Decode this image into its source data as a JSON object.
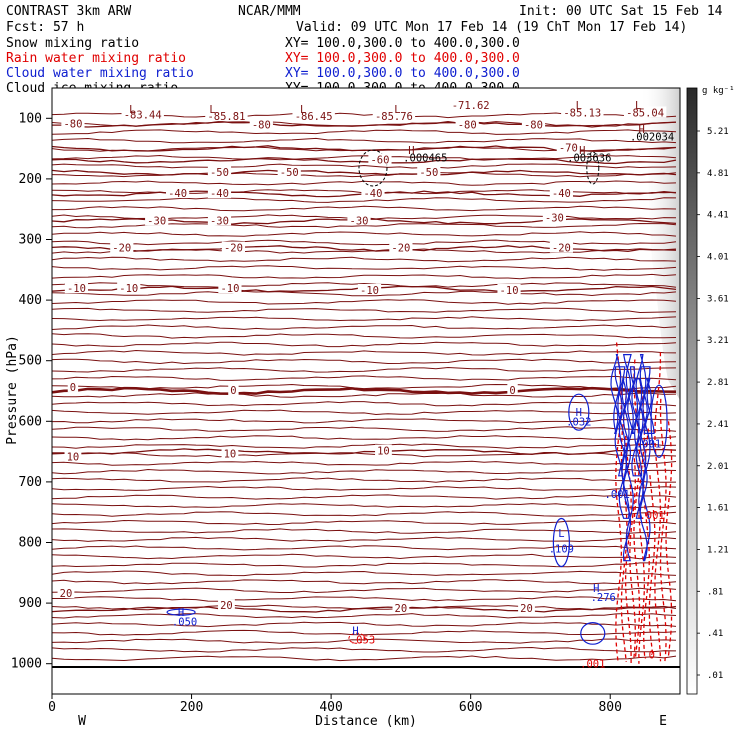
{
  "header": {
    "model": "CONTRAST  3km ARW",
    "fcst": "Fcst:   57 h",
    "org": "NCAR/MMM",
    "init": "Init: 00 UTC Sat 15 Feb 14",
    "valid": "Valid: 09 UTC Mon 17 Feb 14 (19 ChT Mon 17 Feb 14)"
  },
  "legend": [
    {
      "name": "Snow mixing ratio",
      "xy": "XY= 100.0,300.0 to 400.0,300.0",
      "color": "#000000"
    },
    {
      "name": "Rain water mixing ratio",
      "xy": "XY= 100.0,300.0 to 400.0,300.0",
      "color": "#e00000"
    },
    {
      "name": "Cloud water mixing ratio",
      "xy": "XY= 100.0,300.0 to 400.0,300.0",
      "color": "#1020d0"
    },
    {
      "name": "Cloud ice mixing ratio",
      "xy": "XY= 100.0,300.0 to 400.0,300.0",
      "color": "#000000"
    }
  ],
  "colors": {
    "temp": "#7a1010",
    "rain": "#e00000",
    "cloud": "#1020d0"
  },
  "chart_data": {
    "type": "contour",
    "xlabel": "Distance (km)",
    "ylabel": "Pressure (hPa)",
    "xlim": [
      0,
      900
    ],
    "ylim": [
      1050,
      50
    ],
    "x_ticks": [
      "0",
      "200",
      "400",
      "600",
      "800"
    ],
    "y_ticks": [
      "100",
      "200",
      "300",
      "400",
      "500",
      "600",
      "700",
      "800",
      "900",
      "1000"
    ],
    "x_ends": [
      "W",
      "E"
    ],
    "colorbar": {
      "unit": "g kg⁻¹",
      "labels": [
        "5.21",
        "4.81",
        "4.41",
        "4.01",
        "3.61",
        "3.21",
        "2.81",
        "2.41",
        "2.01",
        "1.61",
        "1.21",
        ".81",
        ".41",
        ".01"
      ]
    },
    "temperature_levels": [
      {
        "label": "-80",
        "p": 110
      },
      {
        "label": "-70",
        "p": 150
      },
      {
        "label": "-60",
        "p": 170
      },
      {
        "label": "-50",
        "p": 190
      },
      {
        "label": "-40",
        "p": 225
      },
      {
        "label": "-30",
        "p": 270
      },
      {
        "label": "-20",
        "p": 315
      },
      {
        "label": "-10",
        "p": 382
      },
      {
        "label": "0",
        "p": 550
      },
      {
        "label": "10",
        "p": 650
      },
      {
        "label": "20",
        "p": 910
      }
    ],
    "temperature_labels": [
      {
        "text": "-71.62",
        "x": 600,
        "p": 80
      },
      {
        "text": "-83.44",
        "x": 130,
        "p": 95
      },
      {
        "text": "-85.81",
        "x": 250,
        "p": 98
      },
      {
        "text": "-86.45",
        "x": 375,
        "p": 98
      },
      {
        "text": "-85.76",
        "x": 490,
        "p": 98
      },
      {
        "text": "-85.13",
        "x": 760,
        "p": 92
      },
      {
        "text": "-85.04",
        "x": 850,
        "p": 92
      },
      {
        "text": "-80",
        "x": 30,
        "p": 110
      },
      {
        "text": "-80",
        "x": 300,
        "p": 112
      },
      {
        "text": "-80",
        "x": 595,
        "p": 112
      },
      {
        "text": "-80",
        "x": 690,
        "p": 112
      },
      {
        "text": "-70",
        "x": 740,
        "p": 150
      },
      {
        "text": "-60",
        "x": 470,
        "p": 170
      },
      {
        "text": "-50",
        "x": 240,
        "p": 190
      },
      {
        "text": "-50",
        "x": 340,
        "p": 190
      },
      {
        "text": "-50",
        "x": 540,
        "p": 190
      },
      {
        "text": "-40",
        "x": 180,
        "p": 225
      },
      {
        "text": "-40",
        "x": 240,
        "p": 225
      },
      {
        "text": "-40",
        "x": 460,
        "p": 225
      },
      {
        "text": "-40",
        "x": 730,
        "p": 225
      },
      {
        "text": "-30",
        "x": 150,
        "p": 270
      },
      {
        "text": "-30",
        "x": 240,
        "p": 270
      },
      {
        "text": "-30",
        "x": 440,
        "p": 270
      },
      {
        "text": "-30",
        "x": 720,
        "p": 265
      },
      {
        "text": "-20",
        "x": 100,
        "p": 315
      },
      {
        "text": "-20",
        "x": 260,
        "p": 315
      },
      {
        "text": "-20",
        "x": 500,
        "p": 315
      },
      {
        "text": "-20",
        "x": 730,
        "p": 315
      },
      {
        "text": "-10",
        "x": 35,
        "p": 382
      },
      {
        "text": "-10",
        "x": 110,
        "p": 382
      },
      {
        "text": "-10",
        "x": 255,
        "p": 382
      },
      {
        "text": "-10",
        "x": 455,
        "p": 385
      },
      {
        "text": "-10",
        "x": 655,
        "p": 385
      },
      {
        "text": "0",
        "x": 30,
        "p": 545
      },
      {
        "text": "0",
        "x": 260,
        "p": 550
      },
      {
        "text": "0",
        "x": 660,
        "p": 550
      },
      {
        "text": "10",
        "x": 30,
        "p": 660
      },
      {
        "text": "10",
        "x": 255,
        "p": 655
      },
      {
        "text": "10",
        "x": 475,
        "p": 650
      },
      {
        "text": "20",
        "x": 20,
        "p": 885
      },
      {
        "text": "20",
        "x": 250,
        "p": 905
      },
      {
        "text": "20",
        "x": 500,
        "p": 910
      },
      {
        "text": "20",
        "x": 680,
        "p": 910
      }
    ],
    "lh_markers": [
      {
        "text": "L",
        "x": 115,
        "p": 85
      },
      {
        "text": "L",
        "x": 230,
        "p": 85
      },
      {
        "text": "L",
        "x": 360,
        "p": 85
      },
      {
        "text": "L",
        "x": 495,
        "p": 85
      },
      {
        "text": "L",
        "x": 755,
        "p": 78
      },
      {
        "text": "L",
        "x": 840,
        "p": 78
      },
      {
        "text": "H",
        "x": 845,
        "p": 118
      },
      {
        "text": "H",
        "x": 515,
        "p": 152
      },
      {
        "text": "H",
        "x": 760,
        "p": 152
      },
      {
        "text": "H",
        "x": 755,
        "p": 585
      },
      {
        "text": "L",
        "x": 730,
        "p": 784
      },
      {
        "text": "H",
        "x": 780,
        "p": 875
      },
      {
        "text": "H",
        "x": 185,
        "p": 915
      },
      {
        "text": "H",
        "x": 435,
        "p": 945
      }
    ],
    "extrema_values": [
      {
        "text": ".002034",
        "x": 860,
        "p": 130
      },
      {
        "text": ".000465",
        "x": 535,
        "p": 165
      },
      {
        "text": ".003636",
        "x": 770,
        "p": 165
      },
      {
        "text": ".032",
        "x": 755,
        "p": 600,
        "series": "cloud"
      },
      {
        "text": ".001",
        "x": 855,
        "p": 637,
        "series": "cloud"
      },
      {
        "text": ".001",
        "x": 810,
        "p": 720,
        "series": "cloud"
      },
      {
        "text": ".001",
        "x": 860,
        "p": 755,
        "series": "rain"
      },
      {
        "text": ".109",
        "x": 730,
        "p": 810,
        "series": "cloud"
      },
      {
        "text": ".276",
        "x": 790,
        "p": 890,
        "series": "cloud"
      },
      {
        "text": ".050",
        "x": 190,
        "p": 930,
        "series": "cloud"
      },
      {
        "text": ".053",
        "x": 445,
        "p": 960,
        "series": "rain"
      },
      {
        "text": ".001",
        "x": 775,
        "p": 1000,
        "series": "rain"
      },
      {
        "text": ".0",
        "x": 855,
        "p": 985,
        "series": "rain"
      }
    ]
  }
}
